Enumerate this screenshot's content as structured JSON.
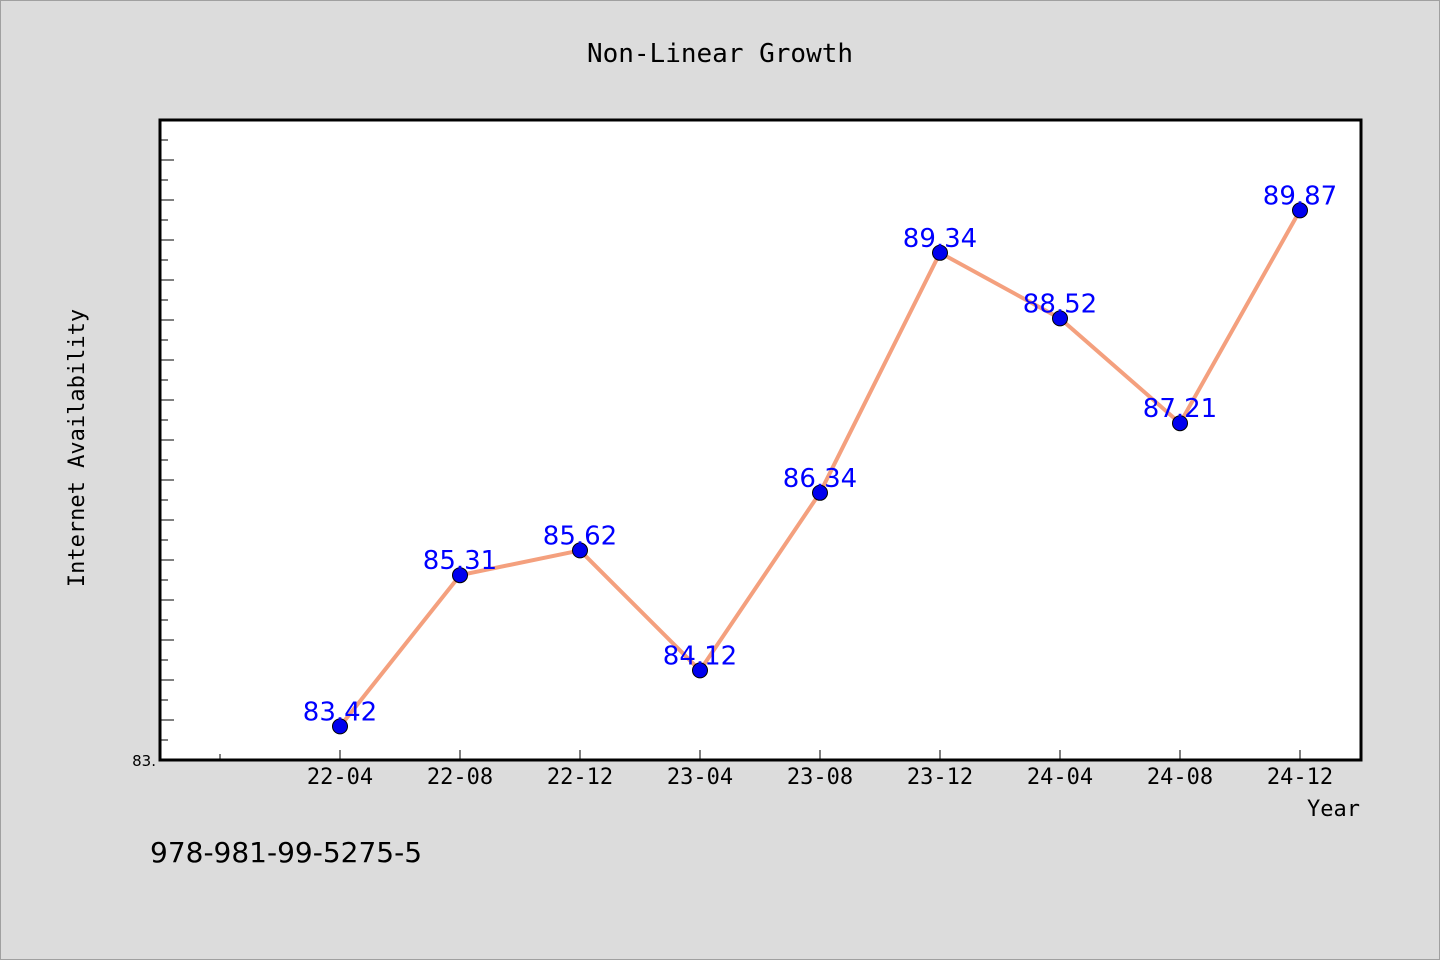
{
  "chart_data": {
    "type": "line",
    "title": "Non-Linear Growth",
    "xlabel": "Year",
    "ylabel": "Internet Availability",
    "categories": [
      "22-04",
      "22-08",
      "22-12",
      "23-04",
      "23-08",
      "23-12",
      "24-04",
      "24-08",
      "24-12"
    ],
    "series": [
      {
        "values": [
          83.42,
          85.31,
          85.62,
          84.12,
          86.34,
          89.34,
          88.52,
          87.21,
          89.87
        ],
        "data_labels": [
          "83.42",
          "85.31",
          "85.62",
          "84.12",
          "86.34",
          "89.34",
          "88.52",
          "87.21",
          "89.87"
        ],
        "line_color": "#f4a07e",
        "marker_color": "#0000ee",
        "label_color": "#0000ff"
      }
    ],
    "ylim": [
      83.0,
      91.0
    ],
    "y_tick_labels": [
      "83."
    ],
    "grid": false,
    "legend": "none",
    "plot_background": "#ffffff",
    "figure_background": "#dcdcdc"
  },
  "footer": {
    "isbn": "978-981-99-5275-5"
  }
}
